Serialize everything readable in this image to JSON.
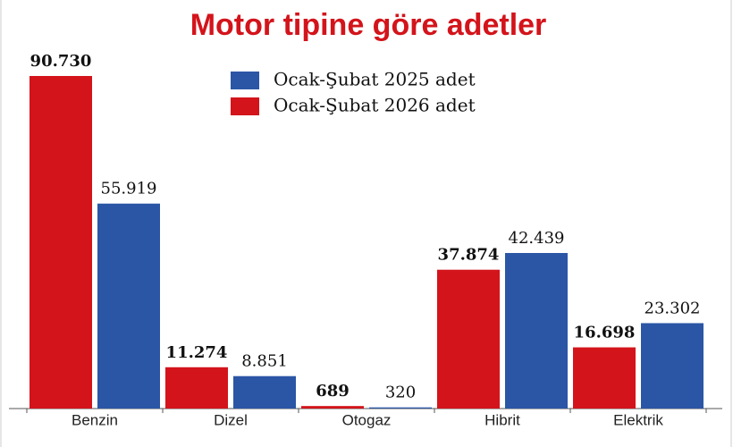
{
  "chart_data": {
    "type": "bar",
    "title": "Motor tipine göre adetler",
    "categories": [
      "Benzin",
      "Dizel",
      "Otogaz",
      "Hibrit",
      "Elektrik"
    ],
    "series": [
      {
        "name": "Ocak-Şubat 2026 adet",
        "color": "#d3141b",
        "values": [
          90730,
          11274,
          689,
          37874,
          16698
        ],
        "value_labels": [
          "90.730",
          "11.274",
          "689",
          "37.874",
          "16.698"
        ]
      },
      {
        "name": "Ocak-Şubat 2025 adet",
        "color": "#2b56a6",
        "values": [
          55919,
          8851,
          320,
          42439,
          23302
        ],
        "value_labels": [
          "55.919",
          "8.851",
          "320",
          "42.439",
          "23.302"
        ]
      }
    ]
  }
}
